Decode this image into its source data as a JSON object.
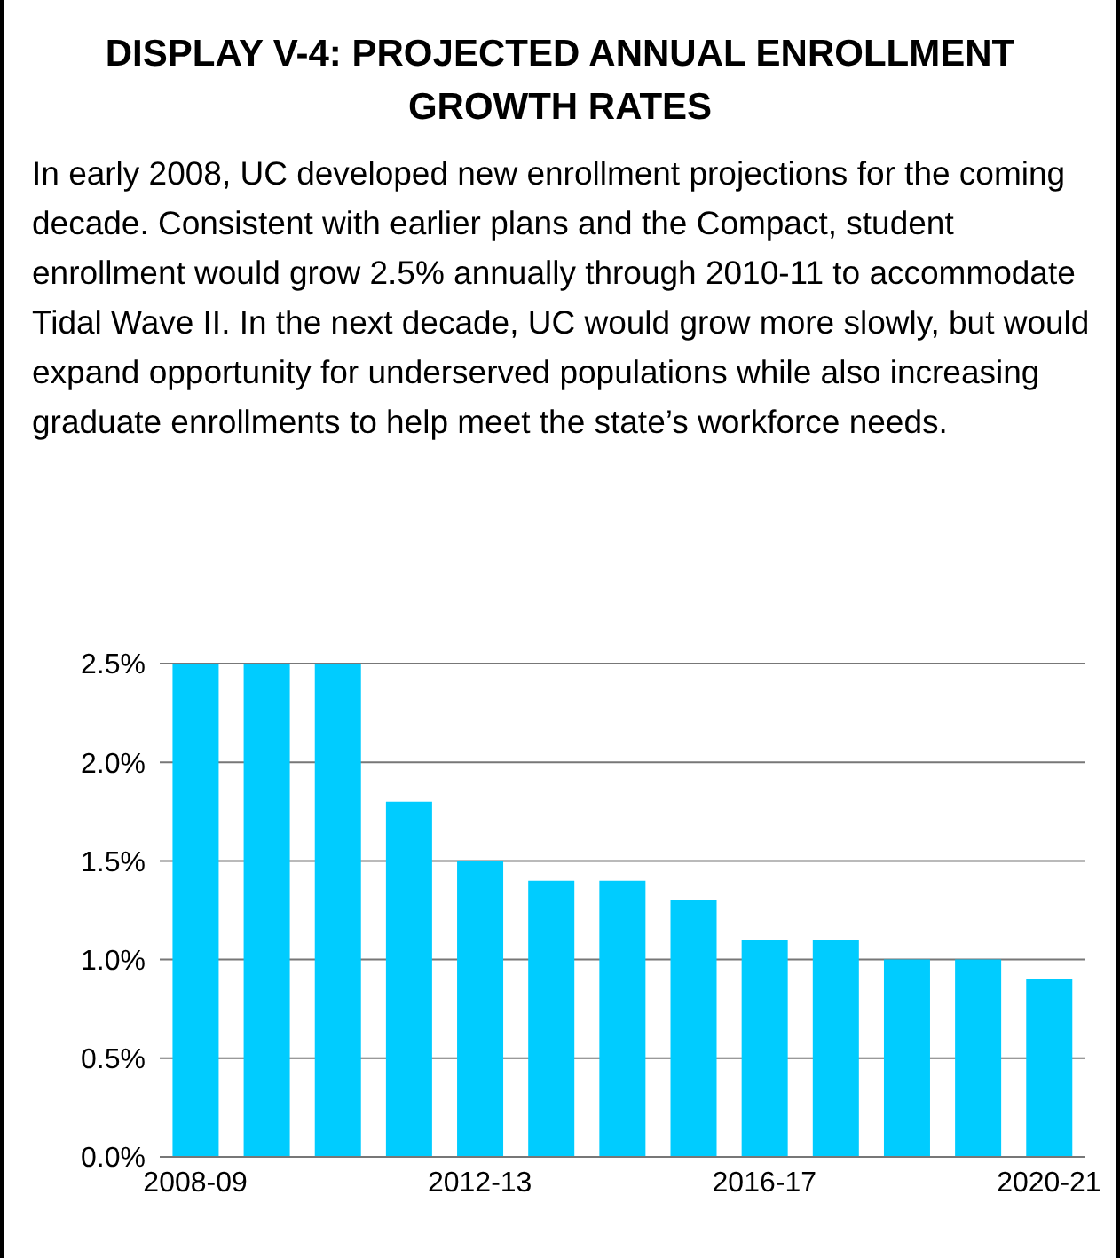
{
  "chart_data": {
    "type": "bar",
    "title": "DISPLAY V-4:  PROJECTED ANNUAL ENROLLMENT GROWTH RATES",
    "subtitle": "In early 2008, UC developed new enrollment projections for the coming decade.  Consistent with earlier plans and the Compact, student enrollment would grow 2.5% annually through 2010-11 to accommodate Tidal Wave II.  In the next decade, UC would grow more slowly, but would expand opportunity for underserved populations while also increasing graduate enrollments to help meet the state’s workforce needs.",
    "categories": [
      "2008-09",
      null,
      null,
      null,
      "2012-13",
      null,
      null,
      null,
      "2016-17",
      null,
      null,
      null,
      "2020-21"
    ],
    "values": [
      2.5,
      2.5,
      2.5,
      1.8,
      1.5,
      1.4,
      1.4,
      1.3,
      1.1,
      1.1,
      1.0,
      1.0,
      0.9
    ],
    "color": "#00ccff",
    "ylim": [
      0,
      2.5
    ],
    "yticks": [
      {
        "value": 0,
        "label": "0.0%"
      },
      {
        "value": 0.5,
        "label": "0.5%"
      },
      {
        "value": 1,
        "label": "1.0%"
      },
      {
        "value": 1.5,
        "label": "1.5%"
      },
      {
        "value": 2,
        "label": "2.0%"
      },
      {
        "value": 2.5,
        "label": "2.5%"
      }
    ],
    "grid": "y"
  }
}
